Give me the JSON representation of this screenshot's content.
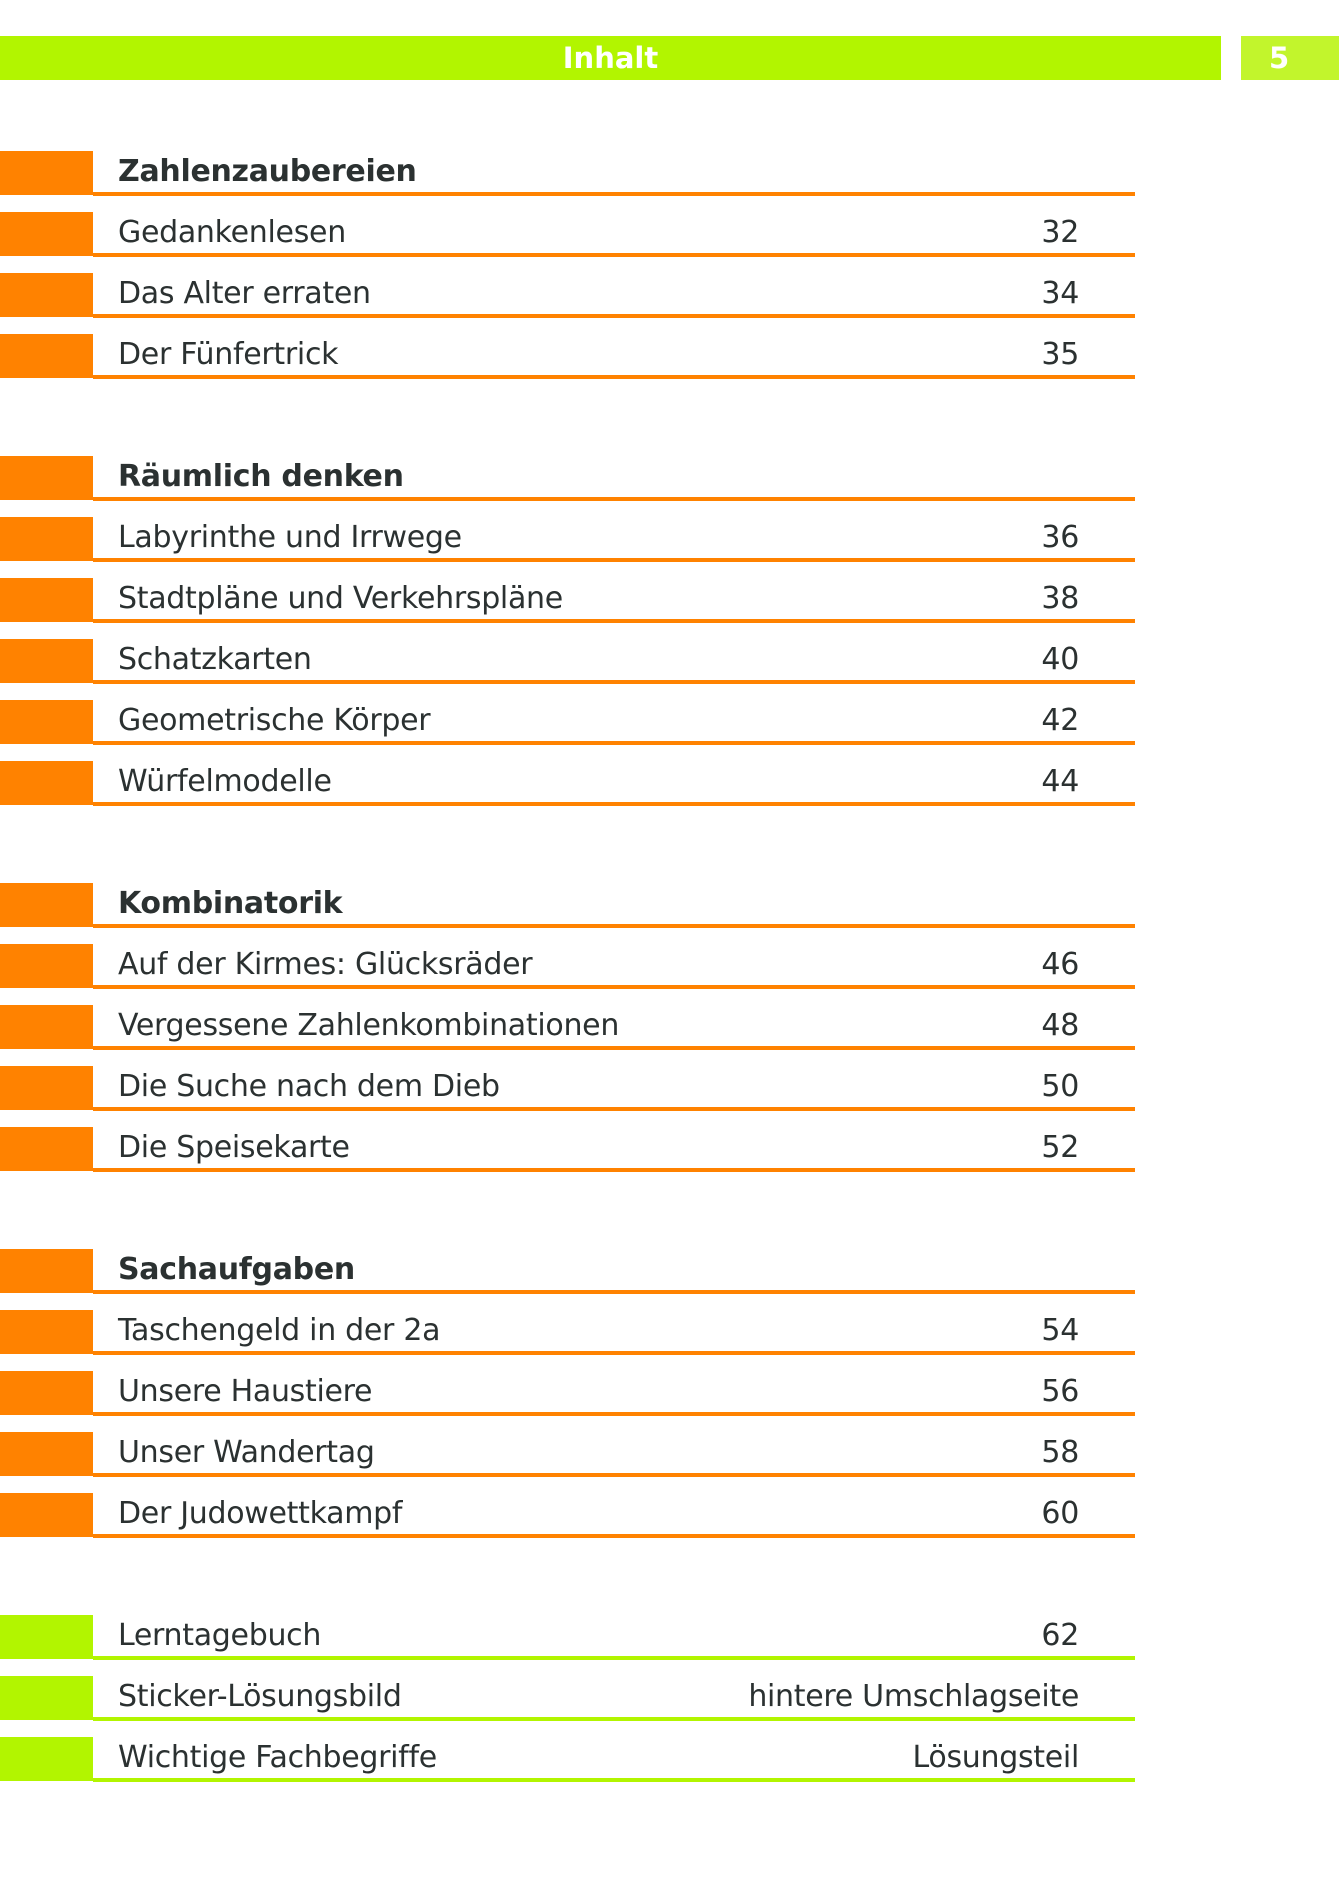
{
  "header": {
    "title": "Inhalt",
    "page_number": "5"
  },
  "colors": {
    "orange": "#ff8200",
    "green": "#b2f500",
    "text": "#2b3131"
  },
  "sections": [
    {
      "title": "Zahlenzaubereien",
      "color": "orange",
      "entries": [
        {
          "title": "Gedankenlesen",
          "page": "32"
        },
        {
          "title": "Das Alter erraten",
          "page": "34"
        },
        {
          "title": "Der Fünfertrick",
          "page": "35"
        }
      ]
    },
    {
      "title": "Räumlich denken",
      "color": "orange",
      "entries": [
        {
          "title": "Labyrinthe und Irrwege",
          "page": "36"
        },
        {
          "title": "Stadtpläne und Verkehrspläne",
          "page": "38"
        },
        {
          "title": "Schatzkarten",
          "page": "40"
        },
        {
          "title": "Geometrische Körper",
          "page": "42"
        },
        {
          "title": "Würfelmodelle",
          "page": "44"
        }
      ]
    },
    {
      "title": "Kombinatorik",
      "color": "orange",
      "entries": [
        {
          "title": "Auf der Kirmes: Glücksräder",
          "page": "46"
        },
        {
          "title": "Vergessene Zahlenkombinationen",
          "page": "48"
        },
        {
          "title": "Die Suche nach dem Dieb",
          "page": "50"
        },
        {
          "title": "Die Speisekarte",
          "page": "52"
        }
      ]
    },
    {
      "title": "Sachaufgaben",
      "color": "orange",
      "entries": [
        {
          "title": "Taschengeld in der 2a",
          "page": "54"
        },
        {
          "title": "Unsere Haustiere",
          "page": "56"
        },
        {
          "title": "Unser Wandertag",
          "page": "58"
        },
        {
          "title": "Der Judowettkampf",
          "page": "60"
        }
      ]
    },
    {
      "title": "",
      "color": "green",
      "entries": [
        {
          "title": "Lerntagebuch",
          "page": "62"
        },
        {
          "title": "Sticker-Lösungsbild",
          "page": "hintere Umschlagseite"
        },
        {
          "title": "Wichtige Fachbegriffe",
          "page": "Lösungsteil"
        }
      ]
    }
  ]
}
